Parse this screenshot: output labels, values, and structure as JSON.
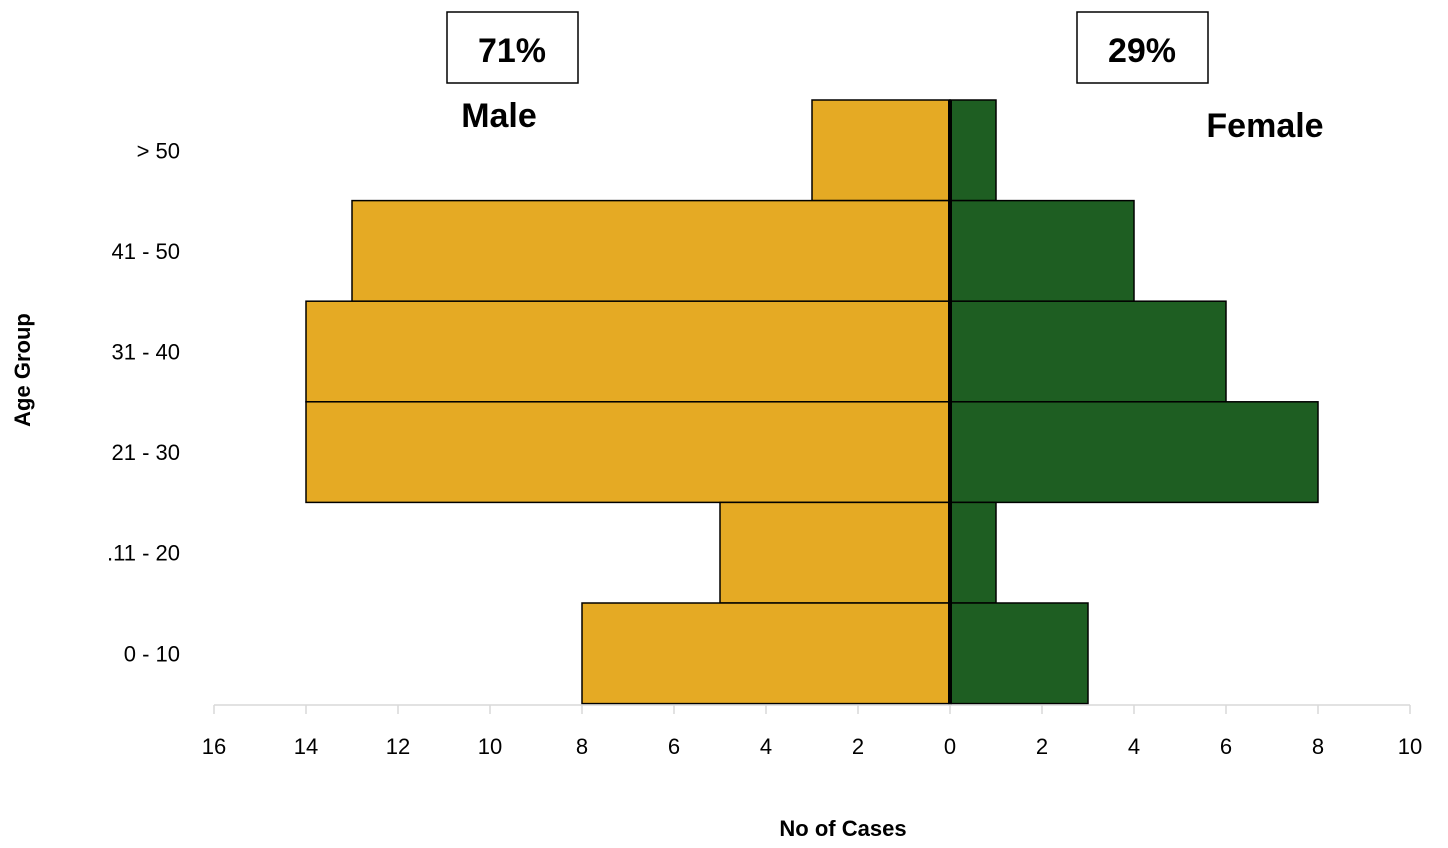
{
  "chart_data": {
    "type": "bar",
    "orientation": "horizontal",
    "subtype": "population-pyramid",
    "categories": [
      "> 50",
      "41 - 50",
      "31 - 40",
      "21 - 30",
      ".11 - 20",
      "0 - 10"
    ],
    "series": [
      {
        "name": "Male",
        "values": [
          3,
          13,
          14,
          14,
          5,
          8
        ],
        "color": "#E5AA24",
        "side": "left"
      },
      {
        "name": "Female",
        "values": [
          1,
          4,
          6,
          8,
          1,
          3
        ],
        "color": "#1E5E22",
        "side": "right"
      }
    ],
    "xlabel": "No of Cases",
    "ylabel": "Age Group",
    "x_ticks": [
      "16",
      "14",
      "12",
      "10",
      "8",
      "6",
      "4",
      "2",
      "0",
      "2",
      "4",
      "6",
      "8",
      "10"
    ],
    "xlim": {
      "male_max": 16,
      "female_max": 10
    },
    "grid": false,
    "annotations": {
      "male_percent": "71%",
      "female_percent": "29%",
      "male_label": "Male",
      "female_label": "Female"
    }
  }
}
